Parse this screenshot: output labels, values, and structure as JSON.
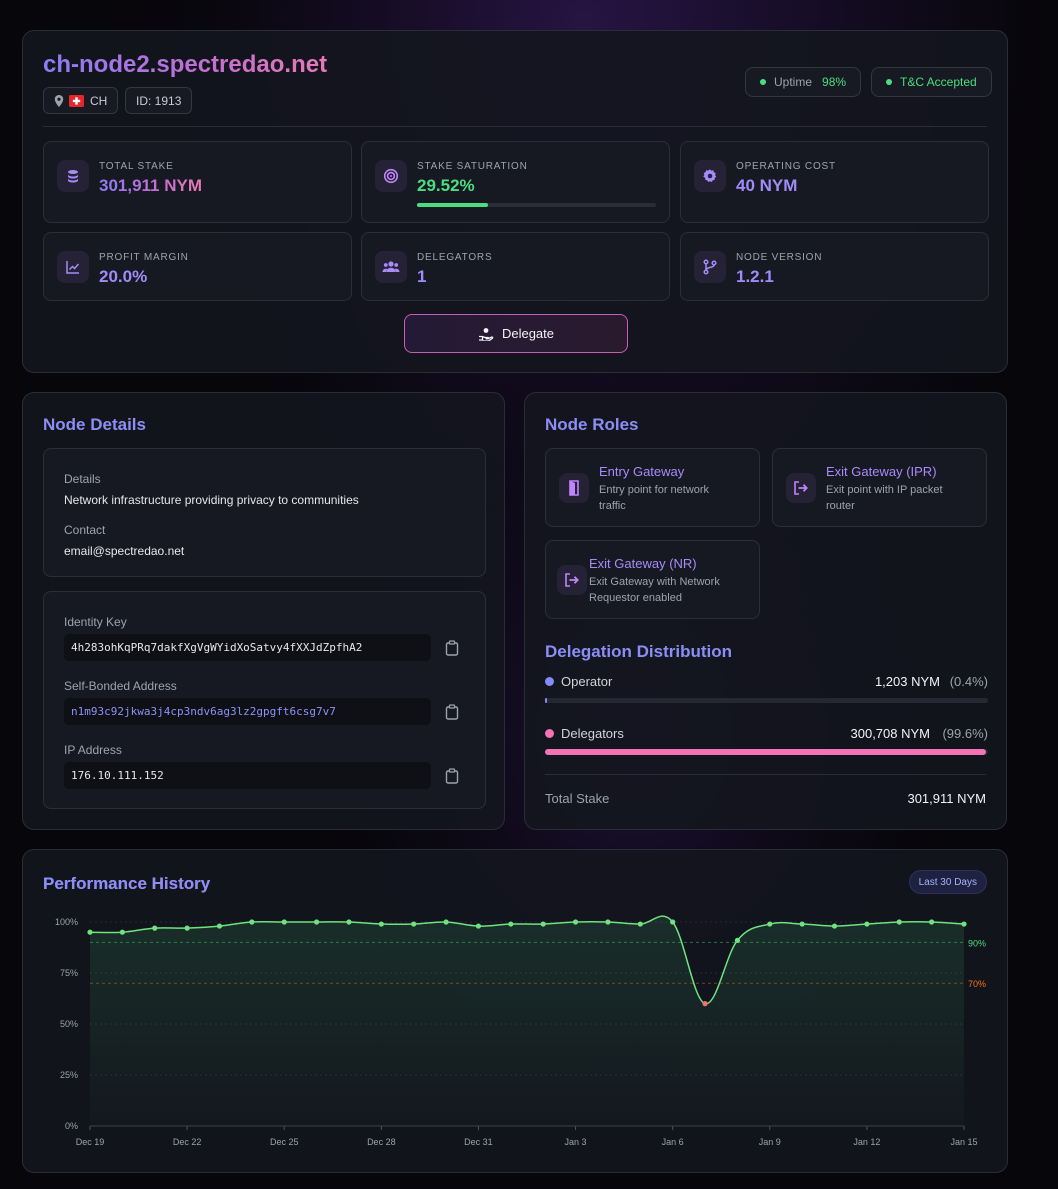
{
  "node": {
    "hostname": "ch-node2.spectredao.net",
    "country": "CH",
    "id_label": "ID: 1913",
    "uptime_label": "Uptime",
    "uptime_value": "98%",
    "tc_label": "T&C Accepted"
  },
  "stats": [
    {
      "label": "TOTAL STAKE",
      "value": "301,911 NYM",
      "icon": "coins-icon"
    },
    {
      "label": "STAKE SATURATION",
      "value": "29.52%",
      "icon": "target-icon",
      "progress": 0.2952
    },
    {
      "label": "OPERATING COST",
      "value": "40 NYM",
      "icon": "gear-icon"
    },
    {
      "label": "PROFIT MARGIN",
      "value": "20.0%",
      "icon": "chart-line-icon"
    },
    {
      "label": "DELEGATORS",
      "value": "1",
      "icon": "users-icon"
    },
    {
      "label": "NODE VERSION",
      "value": "1.2.1",
      "icon": "branch-icon"
    }
  ],
  "delegate_button": "Delegate",
  "details": {
    "title": "Node Details",
    "details_label": "Details",
    "details_value": "Network infrastructure providing privacy to communities",
    "contact_label": "Contact",
    "contact_value": "email@spectredao.net",
    "identity_label": "Identity Key",
    "identity_value": "4h283ohKqPRq7dakfXgVgWYidXoSatvy4fXXJdZpfhA2",
    "address_label": "Self-Bonded Address",
    "address_value": "n1m93c92jkwa3j4cp3ndv6ag3lz2gpgft6csg7v7",
    "ip_label": "IP Address",
    "ip_value": "176.10.111.152"
  },
  "roles": {
    "title": "Node Roles",
    "items": [
      {
        "title": "Entry Gateway",
        "desc1": "Entry point for network",
        "desc2": "traffic",
        "icon": "door-icon"
      },
      {
        "title": "Exit Gateway (IPR)",
        "desc1": "Exit point with IP packet",
        "desc2": "router",
        "icon": "exit-icon"
      },
      {
        "title": "Exit Gateway (NR)",
        "desc1": "Exit Gateway with Network",
        "desc2": "Requestor enabled",
        "icon": "exit-icon"
      }
    ]
  },
  "distribution": {
    "title": "Delegation Distribution",
    "operator_label": "Operator",
    "operator_value": "1,203 NYM",
    "operator_pct": "(0.4%)",
    "operator_fraction": 0.004,
    "delegators_label": "Delegators",
    "delegators_value": "300,708 NYM",
    "delegators_pct": "(99.6%)",
    "delegators_fraction": 0.996,
    "total_label": "Total Stake",
    "total_value": "301,911 NYM",
    "colors": {
      "operator": "#818cf8",
      "delegators": "#f472b6"
    }
  },
  "performance": {
    "title": "Performance History",
    "range_badge": "Last 30 Days"
  },
  "chart_data": {
    "type": "line",
    "title": "Performance History",
    "xlabel": "",
    "ylabel": "",
    "ylim": [
      0,
      100
    ],
    "y_ticks": [
      "0%",
      "25%",
      "50%",
      "75%",
      "100%"
    ],
    "x_tick_labels": [
      "Dec 19",
      "Dec 22",
      "Dec 25",
      "Dec 28",
      "Dec 31",
      "Jan 3",
      "Jan 6",
      "Jan 9",
      "Jan 12",
      "Jan 15"
    ],
    "x": [
      "Dec 19",
      "Dec 20",
      "Dec 21",
      "Dec 22",
      "Dec 23",
      "Dec 24",
      "Dec 25",
      "Dec 26",
      "Dec 27",
      "Dec 28",
      "Dec 29",
      "Dec 30",
      "Dec 31",
      "Jan 1",
      "Jan 2",
      "Jan 3",
      "Jan 4",
      "Jan 5",
      "Jan 6",
      "Jan 7",
      "Jan 8",
      "Jan 9",
      "Jan 10",
      "Jan 11",
      "Jan 12",
      "Jan 13",
      "Jan 14",
      "Jan 15"
    ],
    "series": [
      {
        "values": [
          95,
          95,
          97,
          97,
          98,
          100,
          100,
          100,
          100,
          99,
          99,
          100,
          98,
          99,
          99,
          100,
          100,
          99,
          100,
          60,
          91,
          99,
          99,
          98,
          99,
          100,
          100,
          99
        ],
        "color": "#6ee37f"
      }
    ],
    "reference_lines": [
      {
        "value": 90,
        "label": "90%",
        "color": "#4ade80"
      },
      {
        "value": 70,
        "label": "70%",
        "color": "#f97316"
      }
    ],
    "low_point_color": "#f87171",
    "grid": true
  }
}
